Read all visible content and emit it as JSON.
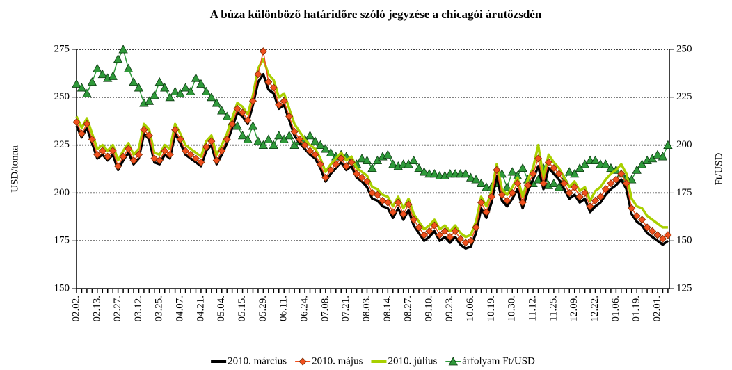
{
  "chart_data": {
    "type": "line",
    "title": "A búza különböző határidőre szóló jegyzése a chicagói árutőzsdén",
    "y_label": "USD/tonna",
    "y2_label": "Ft/USD",
    "categories": [
      "02.02.",
      null,
      null,
      null,
      "02.13.",
      null,
      null,
      null,
      "02.27.",
      null,
      null,
      null,
      "03.12.",
      null,
      null,
      null,
      "03.25.",
      null,
      null,
      null,
      "04.07.",
      null,
      null,
      null,
      "04.21.",
      null,
      null,
      null,
      "05.04.",
      null,
      null,
      null,
      "05.15.",
      null,
      null,
      null,
      "05.29.",
      null,
      null,
      null,
      "06.11.",
      null,
      null,
      null,
      "06.24.",
      null,
      null,
      null,
      "07.08.",
      null,
      null,
      null,
      "07.21.",
      null,
      null,
      null,
      "08.03.",
      null,
      null,
      null,
      "08.14.",
      null,
      null,
      null,
      "08.27.",
      null,
      null,
      null,
      "09.10.",
      null,
      null,
      null,
      "09.23.",
      null,
      null,
      null,
      "10.06.",
      null,
      null,
      null,
      "10.19.",
      null,
      null,
      null,
      "10.30.",
      null,
      null,
      null,
      "11.12.",
      null,
      null,
      null,
      "11.25.",
      null,
      null,
      null,
      "12.09.",
      null,
      null,
      null,
      "12.22.",
      null,
      null,
      null,
      "01.06.",
      null,
      null,
      null,
      "01.19.",
      null,
      null,
      null,
      "02.01.",
      null,
      null
    ],
    "ylim": [
      150,
      275
    ],
    "yticks": [
      150,
      175,
      200,
      225,
      250,
      275
    ],
    "y2lim": [
      125,
      250
    ],
    "y2ticks": [
      125,
      150,
      175,
      200,
      225,
      250
    ],
    "grid": true,
    "legend": "bottom",
    "series": [
      {
        "name": "2010. március",
        "color": "#000000",
        "values": [
          235,
          229,
          234,
          226,
          218,
          220,
          217,
          220,
          212,
          217,
          221,
          215,
          218,
          231,
          228,
          216,
          215,
          220,
          218,
          231,
          226,
          220,
          218,
          216,
          214,
          222,
          225,
          215,
          220,
          226,
          234,
          242,
          240,
          236,
          246,
          258,
          262,
          254,
          252,
          244,
          246,
          238,
          230,
          226,
          223,
          220,
          218,
          213,
          206,
          210,
          213,
          216,
          212,
          214,
          208,
          206,
          203,
          197,
          196,
          193,
          192,
          187,
          192,
          186,
          191,
          183,
          179,
          175,
          177,
          180,
          175,
          177,
          174,
          177,
          173,
          171,
          172,
          179,
          192,
          187,
          195,
          209,
          196,
          193,
          197,
          202,
          192,
          201,
          207,
          214,
          202,
          213,
          210,
          207,
          202,
          197,
          199,
          195,
          197,
          190,
          193,
          195,
          199,
          202,
          204,
          207,
          202,
          189,
          185,
          183,
          179,
          177,
          175,
          173,
          175
        ]
      },
      {
        "name": "2010. május",
        "color": "#f0501e",
        "marker": "diamond",
        "values": [
          237,
          231,
          236,
          228,
          220,
          222,
          219,
          222,
          214,
          219,
          223,
          217,
          220,
          233,
          230,
          218,
          217,
          222,
          220,
          233,
          228,
          222,
          220,
          218,
          216,
          224,
          227,
          217,
          222,
          228,
          236,
          244,
          242,
          238,
          248,
          262,
          274,
          258,
          255,
          246,
          248,
          240,
          232,
          228,
          225,
          222,
          220,
          215,
          208,
          212,
          215,
          218,
          214,
          216,
          210,
          208,
          206,
          200,
          199,
          196,
          195,
          190,
          195,
          189,
          194,
          186,
          182,
          178,
          180,
          183,
          178,
          180,
          177,
          180,
          176,
          174,
          175,
          182,
          195,
          190,
          198,
          212,
          199,
          196,
          200,
          205,
          195,
          204,
          210,
          218,
          205,
          216,
          213,
          210,
          205,
          200,
          203,
          198,
          200,
          193,
          196,
          198,
          202,
          205,
          207,
          210,
          205,
          192,
          188,
          186,
          182,
          180,
          178,
          176,
          178
        ]
      },
      {
        "name": "2010. július",
        "color": "#a8d000",
        "values": [
          240,
          234,
          239,
          231,
          223,
          225,
          222,
          225,
          217,
          222,
          226,
          220,
          223,
          236,
          233,
          221,
          220,
          225,
          223,
          236,
          231,
          225,
          223,
          221,
          219,
          227,
          230,
          220,
          225,
          231,
          239,
          247,
          245,
          241,
          251,
          265,
          270,
          262,
          259,
          250,
          252,
          244,
          236,
          232,
          228,
          225,
          223,
          218,
          211,
          215,
          218,
          221,
          217,
          219,
          213,
          211,
          209,
          203,
          202,
          199,
          198,
          193,
          198,
          192,
          197,
          189,
          185,
          181,
          183,
          186,
          181,
          183,
          180,
          183,
          179,
          177,
          178,
          185,
          198,
          193,
          201,
          215,
          202,
          199,
          203,
          208,
          198,
          207,
          213,
          225,
          208,
          220,
          216,
          213,
          208,
          203,
          206,
          201,
          203,
          196,
          201,
          203,
          207,
          210,
          212,
          215,
          210,
          197,
          193,
          192,
          188,
          186,
          184,
          182,
          182
        ]
      },
      {
        "name": "árfolyam Ft/USD",
        "color": "#2f9a3a",
        "marker": "triangle",
        "axis": "y2",
        "values": [
          232,
          230,
          227,
          233,
          240,
          237,
          235,
          236,
          245,
          250,
          240,
          233,
          230,
          222,
          223,
          226,
          233,
          230,
          225,
          228,
          227,
          230,
          228,
          235,
          232,
          228,
          225,
          222,
          218,
          215,
          212,
          210,
          205,
          203,
          210,
          202,
          200,
          203,
          200,
          205,
          203,
          205,
          200,
          202,
          203,
          205,
          202,
          200,
          198,
          196,
          194,
          195,
          194,
          192,
          190,
          193,
          192,
          188,
          192,
          194,
          195,
          190,
          189,
          190,
          190,
          192,
          188,
          186,
          185,
          185,
          184,
          184,
          185,
          185,
          185,
          185,
          183,
          182,
          180,
          178,
          178,
          180,
          185,
          178,
          186,
          184,
          188,
          182,
          180,
          182,
          188,
          179,
          180,
          178,
          182,
          186,
          185,
          188,
          190,
          192,
          192,
          190,
          190,
          188,
          187,
          185,
          183,
          182,
          187,
          190,
          192,
          193,
          195,
          194,
          200
        ]
      }
    ]
  }
}
